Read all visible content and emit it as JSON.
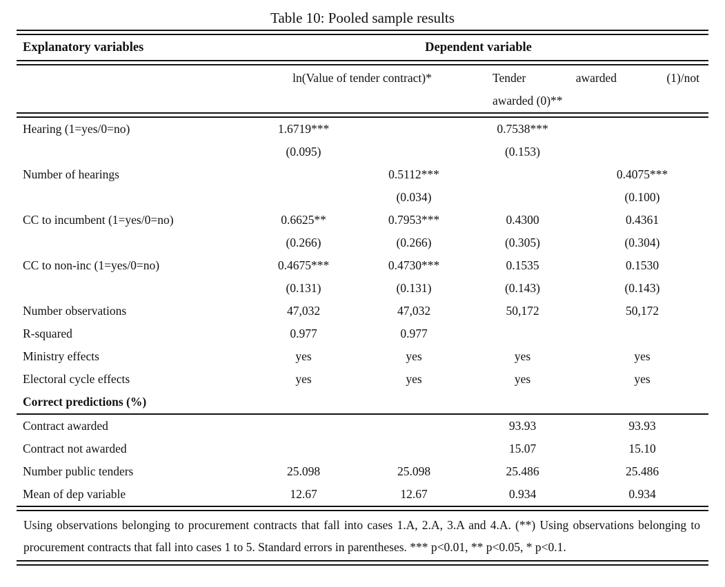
{
  "title": "Table 10: Pooled sample results",
  "colors": {
    "background": "#ffffff",
    "text": "#111111",
    "rule": "#111111"
  },
  "table": {
    "header": {
      "explanatory_label": "Explanatory variables",
      "dependent_label": "Dependent variable"
    },
    "subheader": {
      "col12_label": "ln(Value of tender contract)*",
      "col34_line1_words": [
        "Tender",
        "awarded",
        "(1)/not"
      ],
      "col34_line2": "awarded (0)**"
    },
    "rows_main": [
      {
        "label": "Hearing (1=yes/0=no)",
        "bold": false,
        "cells": [
          "1.6719***",
          "",
          "0.7538***",
          ""
        ]
      },
      {
        "label": "",
        "bold": false,
        "cells": [
          "(0.095)",
          "",
          "(0.153)",
          ""
        ]
      },
      {
        "label": "Number of hearings",
        "bold": false,
        "cells": [
          "",
          "0.5112***",
          "",
          "0.4075***"
        ]
      },
      {
        "label": "",
        "bold": false,
        "cells": [
          "",
          "(0.034)",
          "",
          "(0.100)"
        ]
      },
      {
        "label": "CC to incumbent (1=yes/0=no)",
        "bold": false,
        "cells": [
          "0.6625**",
          "0.7953***",
          "0.4300",
          "0.4361"
        ]
      },
      {
        "label": "",
        "bold": false,
        "cells": [
          "(0.266)",
          "(0.266)",
          "(0.305)",
          "(0.304)"
        ]
      },
      {
        "label": "CC to non-inc (1=yes/0=no)",
        "bold": false,
        "cells": [
          "0.4675***",
          "0.4730***",
          "0.1535",
          "0.1530"
        ]
      },
      {
        "label": "",
        "bold": false,
        "cells": [
          "(0.131)",
          "(0.131)",
          "(0.143)",
          "(0.143)"
        ]
      },
      {
        "label": "Number observations",
        "bold": false,
        "cells": [
          "47,032",
          "47,032",
          "50,172",
          "50,172"
        ]
      },
      {
        "label": "R-squared",
        "bold": false,
        "cells": [
          "0.977",
          "0.977",
          "",
          ""
        ]
      },
      {
        "label": "Ministry effects",
        "bold": false,
        "cells": [
          "yes",
          "yes",
          "yes",
          "yes"
        ]
      },
      {
        "label": "Electoral cycle effects",
        "bold": false,
        "cells": [
          "yes",
          "yes",
          "yes",
          "yes"
        ]
      },
      {
        "label": "Correct predictions (%)",
        "bold": true,
        "cells": [
          "",
          "",
          "",
          ""
        ]
      }
    ],
    "rows_predictions": [
      {
        "label": "Contract awarded",
        "bold": false,
        "cells": [
          "",
          "",
          "93.93",
          "93.93"
        ]
      },
      {
        "label": "Contract not awarded",
        "bold": false,
        "cells": [
          "",
          "",
          "15.07",
          "15.10"
        ]
      },
      {
        "label": "Number public tenders",
        "bold": false,
        "cells": [
          "25.098",
          "25.098",
          "25.486",
          "25.486"
        ]
      },
      {
        "label": "Mean of dep variable",
        "bold": false,
        "cells": [
          "12.67",
          "12.67",
          "0.934",
          "0.934"
        ]
      }
    ],
    "footnote": "Using observations belonging to procurement contracts that fall into cases 1.A, 2.A, 3.A and 4.A. (**) Using observations belonging to procurement contracts that fall into cases 1 to 5. Standard errors in parentheses. *** p<0.01, ** p<0.05, * p<0.1."
  }
}
